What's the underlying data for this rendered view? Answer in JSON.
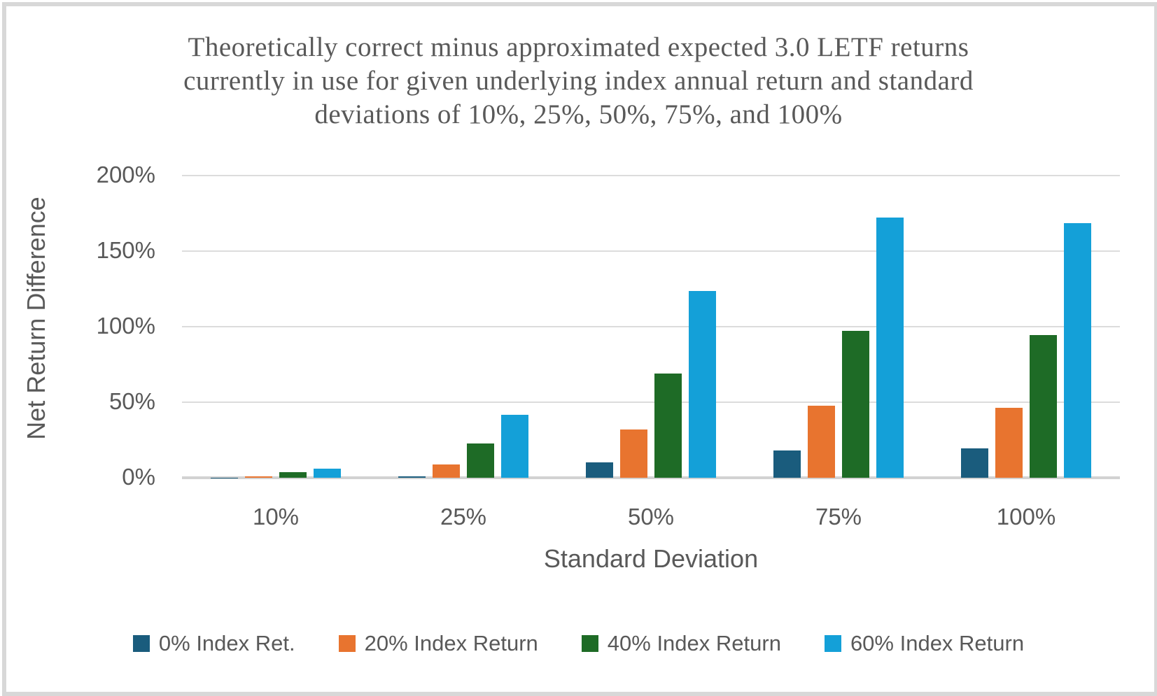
{
  "title": {
    "lines": [
      "Theoretically correct minus approximated expected 3.0 LETF returns",
      "currently in use for given underlying index annual return and standard",
      "deviations of 10%, 25%, 50%,  75%, and 100%"
    ]
  },
  "chart_data": {
    "type": "bar",
    "title": "Theoretically correct minus approximated expected 3.0 LETF returns currently in use for given underlying index annual return and standard deviations of 10%, 25%, 50%, 75%, and 100%",
    "xlabel": "Standard Deviation",
    "ylabel": "Net Return Difference",
    "categories": [
      "10%",
      "25%",
      "50%",
      "75%",
      "100%"
    ],
    "series": [
      {
        "name": "0% Index Ret.",
        "color": "#1A5C7D",
        "values": [
          0.1,
          1,
          10,
          18,
          19.5
        ]
      },
      {
        "name": "20% Index Return",
        "color": "#E8742F",
        "values": [
          1,
          9,
          32,
          47.5,
          46.5
        ]
      },
      {
        "name": "40% Index Return",
        "color": "#1E6B26",
        "values": [
          3.5,
          22.5,
          69,
          97,
          94.5
        ]
      },
      {
        "name": "60% Index Return",
        "color": "#14A0D8",
        "values": [
          6,
          41.5,
          123.5,
          172,
          168.5
        ]
      }
    ],
    "ylim": [
      0,
      200
    ],
    "ytick_step": 50,
    "ytick_labels": [
      "0%",
      "50%",
      "100%",
      "150%",
      "200%"
    ],
    "grid": true,
    "legend_position": "bottom",
    "colors": {
      "gridline": "#dcdcdc",
      "axis_line": "#d2d2d2",
      "text": "#595959"
    }
  }
}
